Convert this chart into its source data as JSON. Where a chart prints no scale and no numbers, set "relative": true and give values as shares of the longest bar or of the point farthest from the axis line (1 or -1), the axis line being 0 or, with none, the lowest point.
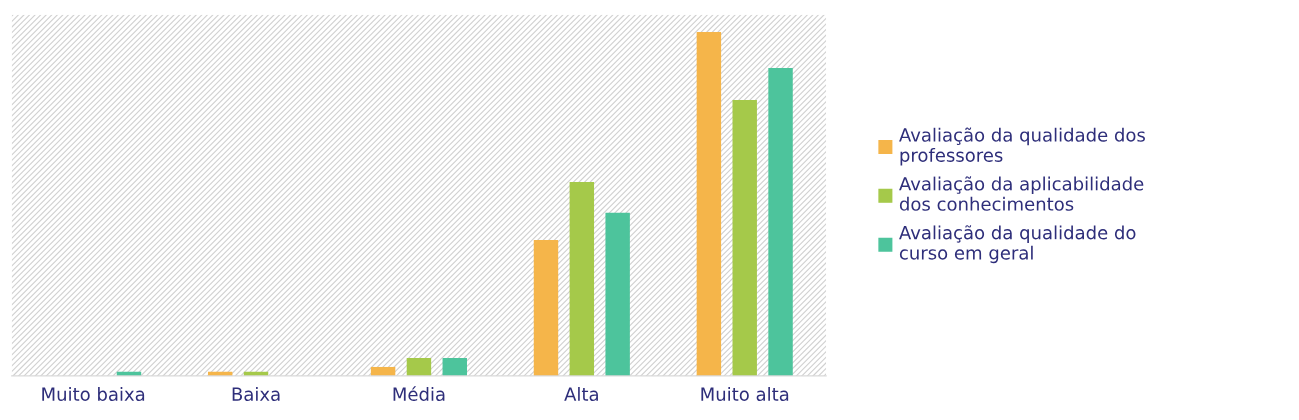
{
  "chart_data": {
    "type": "bar",
    "relative": true,
    "categories": [
      "Muito baixa",
      "Baixa",
      "Média",
      "Alta",
      "Muito alta"
    ],
    "series": [
      {
        "name": "Avaliação da qualidade dos professores",
        "color": "#f5b54a",
        "values": [
          0,
          0.012,
          0.026,
          0.395,
          1
        ]
      },
      {
        "name": "Avaliação da aplicabilidade dos conhecimentos",
        "color": "#a5c94a",
        "values": [
          0,
          0.012,
          0.052,
          0.564,
          0.802
        ]
      },
      {
        "name": "Avaliação da qualidade do curso em geral",
        "color": "#4dc49c",
        "values": [
          0.012,
          0,
          0.052,
          0.474,
          0.895
        ]
      }
    ],
    "legend": "right",
    "grid": false
  }
}
